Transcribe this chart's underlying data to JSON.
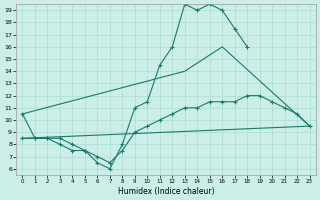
{
  "bg_color": "#cceee8",
  "grid_color": "#aaddcc",
  "line_color": "#1a7a6a",
  "xlabel": "Humidex (Indice chaleur)",
  "xlim": [
    -0.5,
    23.5
  ],
  "ylim": [
    5.5,
    19.5
  ],
  "xticks": [
    0,
    1,
    2,
    3,
    4,
    5,
    6,
    7,
    8,
    9,
    10,
    11,
    12,
    13,
    14,
    15,
    16,
    17,
    18,
    19,
    20,
    21,
    22,
    23
  ],
  "yticks": [
    6,
    7,
    8,
    9,
    10,
    11,
    12,
    13,
    14,
    15,
    16,
    17,
    18,
    19
  ],
  "curve1_x": [
    0,
    1,
    2,
    3,
    4,
    5,
    6,
    7,
    8,
    9,
    10,
    11,
    12,
    13,
    14,
    15,
    16,
    17,
    18
  ],
  "curve1_y": [
    10.5,
    8.5,
    8.5,
    8.5,
    8.0,
    7.5,
    6.5,
    6.0,
    8.0,
    11.0,
    11.5,
    14.5,
    16.0,
    19.5,
    19.0,
    19.5,
    19.0,
    17.5,
    16.0
  ],
  "line2_x": [
    0,
    13,
    16,
    23
  ],
  "line2_y": [
    10.5,
    14.0,
    16.0,
    9.5
  ],
  "curve3_x": [
    0,
    1,
    2,
    3,
    4,
    5,
    6,
    7,
    8,
    9,
    10,
    11,
    12,
    13,
    14,
    15,
    16,
    17,
    18,
    19,
    20,
    21,
    22,
    23
  ],
  "curve3_y": [
    8.5,
    8.5,
    8.5,
    8.0,
    7.5,
    7.5,
    7.0,
    6.5,
    7.5,
    9.0,
    9.5,
    10.0,
    10.5,
    11.0,
    11.0,
    11.5,
    11.5,
    11.5,
    12.0,
    12.0,
    11.5,
    11.0,
    10.5,
    9.5
  ],
  "line4_x": [
    0,
    23
  ],
  "line4_y": [
    8.5,
    9.5
  ]
}
